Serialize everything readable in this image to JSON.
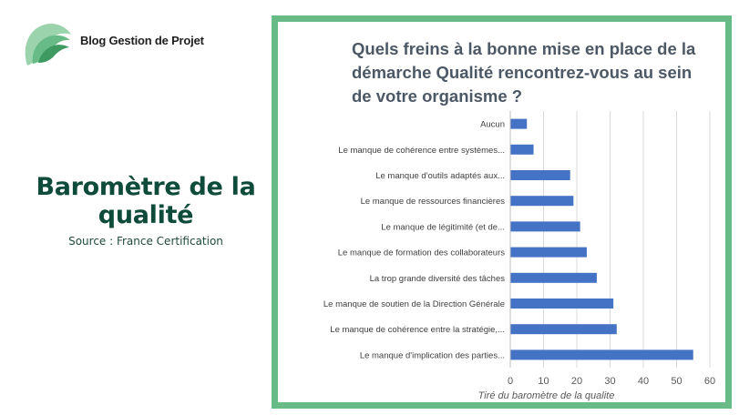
{
  "brand": {
    "name": "Blog Gestion de Projet"
  },
  "left_panel": {
    "title_line1": "Baromètre de la",
    "title_line2": "qualité",
    "source": "Source : France Certification"
  },
  "colors": {
    "accent": "#68bb86",
    "title_green": "#0e4b3a",
    "bar": "#4472c4"
  },
  "chart_data": {
    "type": "bar",
    "orientation": "horizontal",
    "title_lines": [
      "Quels freins à la bonne mise en place de la",
      "démarche Qualité rencontrez-vous au sein",
      "de votre organisme ?"
    ],
    "categories": [
      "Aucun",
      "Le manque de cohérence entre systèmes...",
      "Le manque d'outils adaptés aux...",
      "Le manque de ressources financières",
      "Le manque de légitimité (et de...",
      "Le manque de formation des collaborateurs",
      "La trop grande diversité des tâches",
      "Le manque de soutien de la Direction Générale",
      "Le manque de cohérence entre la stratégie,...",
      "Le manque d'implication des parties..."
    ],
    "values": [
      5,
      7,
      18,
      19,
      21,
      23,
      26,
      31,
      32,
      55
    ],
    "xlim": [
      0,
      60
    ],
    "xticks": [
      "0",
      "10",
      "20",
      "30",
      "40",
      "50",
      "60"
    ],
    "xlabel": "Tiré du baromètre de la qualite",
    "grid": true
  }
}
